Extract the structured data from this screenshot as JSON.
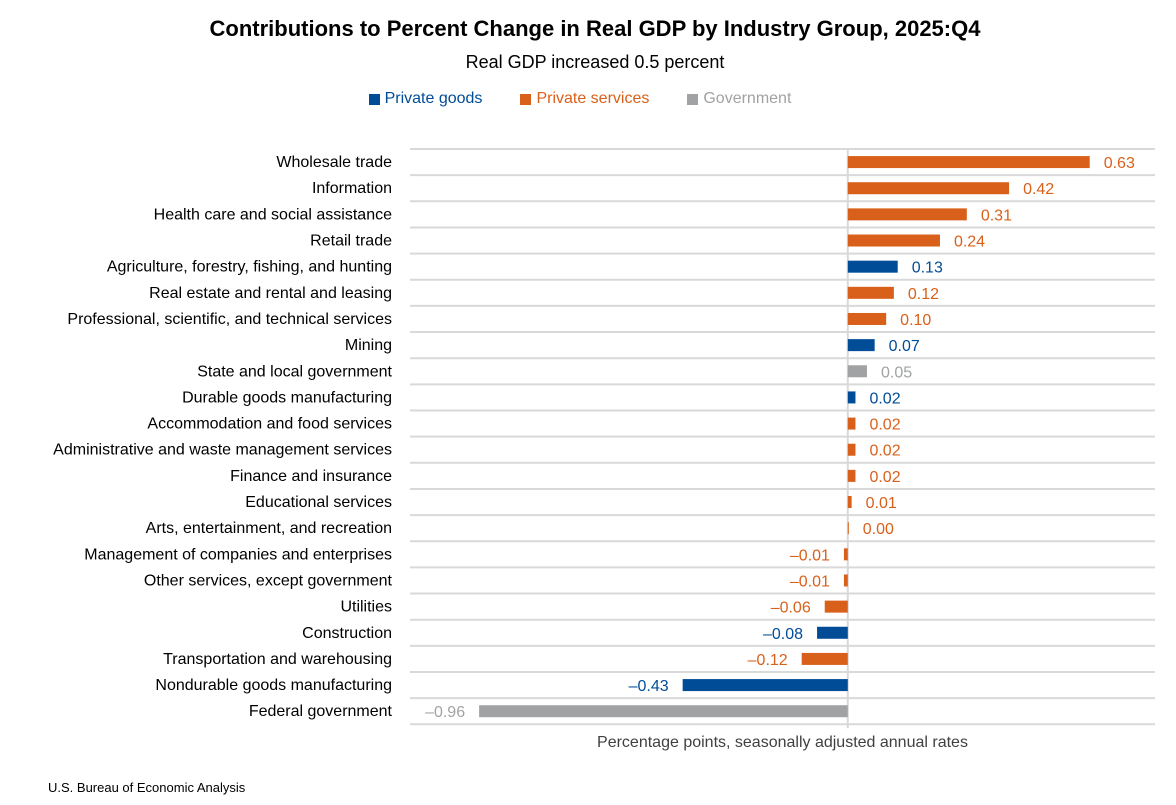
{
  "chart_data": {
    "type": "bar",
    "orientation": "horizontal",
    "title": "Contributions to Percent Change in Real GDP by Industry Group, 2025:Q4",
    "subtitle": "Real GDP increased 0.5 percent",
    "xlabel": "Percentage points, seasonally adjusted annual rates",
    "source": "U.S. Bureau of Economic Analysis",
    "grid": "horizontal",
    "xlim": [
      -1.14,
      0.8
    ],
    "legend_position": "top",
    "legend": [
      {
        "name": "Private goods",
        "color": "#004C97"
      },
      {
        "name": "Private services",
        "color": "#D9601A"
      },
      {
        "name": "Government",
        "color": "#A0A2A3"
      }
    ],
    "categories": [
      "Wholesale trade",
      "Information",
      "Health care and social assistance",
      "Retail trade",
      "Agriculture, forestry, fishing, and hunting",
      "Real estate and rental and leasing",
      "Professional, scientific, and technical services",
      "Mining",
      "State and local government",
      "Durable goods manufacturing",
      "Accommodation and food services",
      "Administrative and waste management services",
      "Finance and insurance",
      "Educational services",
      "Arts, entertainment, and recreation",
      "Management of companies and enterprises",
      "Other services, except government",
      "Utilities",
      "Construction",
      "Transportation and warehousing",
      "Nondurable goods manufacturing",
      "Federal government"
    ],
    "values": [
      0.63,
      0.42,
      0.31,
      0.24,
      0.13,
      0.12,
      0.1,
      0.07,
      0.05,
      0.02,
      0.02,
      0.02,
      0.02,
      0.01,
      0.0,
      -0.01,
      -0.01,
      -0.06,
      -0.08,
      -0.12,
      -0.43,
      -0.96
    ],
    "groups": [
      "Private services",
      "Private services",
      "Private services",
      "Private services",
      "Private goods",
      "Private services",
      "Private services",
      "Private goods",
      "Government",
      "Private goods",
      "Private services",
      "Private services",
      "Private services",
      "Private services",
      "Private services",
      "Private services",
      "Private services",
      "Private services",
      "Private goods",
      "Private services",
      "Private goods",
      "Government"
    ]
  }
}
